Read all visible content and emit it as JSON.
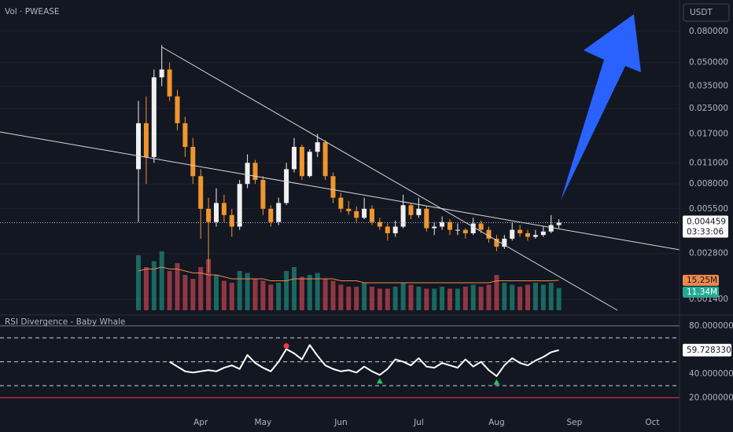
{
  "chart_data": [
    {
      "type": "candlestick",
      "title": "Vol · PWEASE",
      "currency": "USDT",
      "countdown": "03:33:06",
      "yscale": "log",
      "grid": true,
      "up_color": "#f0f0f0",
      "down_color": "#f0952e",
      "ylim": [
        0.00112,
        0.1285
      ],
      "yticks": [
        {
          "value": 0.08,
          "label": "0.080000"
        },
        {
          "value": 0.05,
          "label": "0.050000"
        },
        {
          "value": 0.035,
          "label": "0.035000"
        },
        {
          "value": 0.025,
          "label": "0.025000"
        },
        {
          "value": 0.017,
          "label": "0.017000"
        },
        {
          "value": 0.011,
          "label": "0.011000"
        },
        {
          "value": 0.008,
          "label": "0.008000"
        },
        {
          "value": 0.0055,
          "label": "0.005500"
        },
        {
          "value": 0.0028,
          "label": "0.002800"
        },
        {
          "value": 0.0014,
          "label": "0.001400"
        }
      ],
      "categories": [
        null,
        null,
        null,
        null,
        null,
        null,
        null,
        null,
        "Apr",
        null,
        null,
        null,
        null,
        null,
        null,
        null,
        "May",
        null,
        null,
        null,
        null,
        null,
        null,
        null,
        null,
        null,
        "Jun",
        null,
        null,
        null,
        null,
        null,
        null,
        null,
        null,
        null,
        "Jul",
        null,
        null,
        null,
        null,
        null,
        null,
        null,
        null,
        null,
        "Aug",
        null,
        null,
        null,
        null,
        null,
        null,
        null,
        null,
        null,
        "Sep",
        null,
        null,
        null,
        null,
        null,
        null,
        null,
        null,
        null,
        "Oct"
      ],
      "open": [
        0.01,
        0.02,
        0.012,
        0.04,
        0.045,
        0.03,
        0.02,
        0.014,
        0.009,
        0.0055,
        0.0045,
        0.006,
        0.005,
        0.0042,
        0.008,
        0.011,
        0.0085,
        0.0055,
        0.0045,
        0.006,
        0.01,
        0.014,
        0.009,
        0.013,
        0.015,
        0.009,
        0.0065,
        0.0055,
        0.0053,
        0.0048,
        0.0055,
        0.0045,
        0.0042,
        0.0038,
        0.0042,
        0.0058,
        0.005,
        0.0055,
        0.0041,
        0.0042,
        0.0045,
        0.004,
        0.004,
        0.0038,
        0.0044,
        0.004,
        0.0035,
        0.0031,
        0.0035,
        0.004,
        0.0038,
        0.0036,
        0.0037,
        0.0039,
        0.0043,
        null,
        null,
        null,
        null,
        null,
        null,
        null,
        null,
        null,
        null,
        null,
        null
      ],
      "high": [
        0.028,
        0.03,
        0.045,
        0.065,
        0.05,
        0.033,
        0.022,
        0.016,
        0.01,
        0.0065,
        0.0075,
        0.0068,
        0.0055,
        0.0085,
        0.0125,
        0.0115,
        0.009,
        0.0058,
        0.0065,
        0.011,
        0.016,
        0.0145,
        0.0135,
        0.017,
        0.0155,
        0.0095,
        0.007,
        0.0062,
        0.0057,
        0.0065,
        0.0058,
        0.0048,
        0.0044,
        0.0046,
        0.0068,
        0.006,
        0.0065,
        0.0057,
        0.0045,
        0.0049,
        0.0047,
        0.0044,
        0.0041,
        0.0048,
        0.0046,
        0.0042,
        0.0037,
        0.0037,
        0.0045,
        0.0043,
        0.004,
        0.004,
        0.0042,
        0.005,
        0.0047,
        null,
        null,
        null,
        null,
        null,
        null,
        null,
        null,
        null,
        null,
        null,
        null
      ],
      "low": [
        0.0045,
        0.008,
        0.011,
        0.035,
        0.028,
        0.018,
        0.012,
        0.008,
        0.0035,
        0.0021,
        0.0042,
        0.0045,
        0.0036,
        0.004,
        0.0075,
        0.008,
        0.005,
        0.0042,
        0.0043,
        0.0058,
        0.0095,
        0.0085,
        0.0088,
        0.012,
        0.0085,
        0.006,
        0.0052,
        0.005,
        0.0045,
        0.0047,
        0.0043,
        0.004,
        0.0034,
        0.0036,
        0.0041,
        0.0047,
        0.0048,
        0.0039,
        0.0037,
        0.004,
        0.0037,
        0.0037,
        0.0035,
        0.0037,
        0.0038,
        0.0033,
        0.0029,
        0.003,
        0.0034,
        0.0036,
        0.0034,
        0.0035,
        0.0036,
        0.0038,
        0.0041,
        null,
        null,
        null,
        null,
        null,
        null,
        null,
        null,
        null,
        null,
        null,
        null
      ],
      "close": [
        0.02,
        0.012,
        0.04,
        0.045,
        0.03,
        0.02,
        0.014,
        0.009,
        0.0055,
        0.0045,
        0.006,
        0.005,
        0.0042,
        0.008,
        0.011,
        0.0085,
        0.0055,
        0.0045,
        0.006,
        0.01,
        0.014,
        0.009,
        0.013,
        0.015,
        0.009,
        0.0065,
        0.0055,
        0.0053,
        0.0048,
        0.0055,
        0.0045,
        0.0042,
        0.0038,
        0.0042,
        0.0058,
        0.005,
        0.0055,
        0.0041,
        0.0042,
        0.0045,
        0.004,
        0.004,
        0.0038,
        0.0044,
        0.004,
        0.0035,
        0.0031,
        0.0035,
        0.004,
        0.0038,
        0.0036,
        0.0037,
        0.0039,
        0.0043,
        0.004459,
        null,
        null,
        null,
        null,
        null,
        null,
        null,
        null,
        null,
        null,
        null,
        null
      ],
      "volume": {
        "up_color": "#22ab94",
        "down_color": "#f7525f",
        "ylim": [
          0,
          30
        ],
        "last_label": "11.34M",
        "values": [
          28,
          22,
          25,
          30,
          20,
          24,
          18,
          16,
          22,
          26,
          18,
          15,
          14,
          20,
          19,
          16,
          15,
          13,
          14,
          20,
          22,
          17,
          18,
          19,
          16,
          15,
          13,
          12,
          12,
          14,
          12,
          11,
          11,
          12,
          14,
          13,
          12,
          11,
          11,
          12,
          11,
          11,
          12,
          13,
          12,
          13,
          18,
          14,
          13,
          12,
          13,
          14,
          13,
          14,
          11.34,
          null,
          null,
          null,
          null,
          null,
          null,
          null,
          null,
          null,
          null,
          null,
          null
        ]
      },
      "volume_ma": {
        "color": "#f0884a",
        "last_label": "15.25M",
        "values": [
          20,
          21,
          21,
          22,
          21,
          21,
          20,
          19,
          19,
          18,
          18,
          17,
          16,
          16,
          16,
          16,
          16,
          15,
          15,
          15,
          16,
          16,
          16,
          16,
          16,
          16,
          15,
          15,
          15,
          14,
          14,
          14,
          14,
          14,
          14,
          14,
          14,
          14,
          14,
          14,
          14,
          14,
          14,
          14,
          14,
          14,
          15,
          15,
          15,
          15,
          15,
          15,
          15,
          15,
          15.25,
          null,
          null,
          null,
          null,
          null,
          null,
          null,
          null,
          null,
          null,
          null,
          null
        ]
      }
    },
    {
      "type": "line",
      "title": "RSI Divergence - Baby Whale",
      "color": "#ffffff",
      "last_label": "59.728330",
      "ylim": [
        11,
        86.5
      ],
      "yticks": [
        {
          "value": 80,
          "label": "80.000000"
        },
        {
          "value": 40,
          "label": "40.000000"
        },
        {
          "value": 20,
          "label": "20.000000"
        }
      ],
      "levels": [
        {
          "value": 80,
          "color": "#787b86",
          "dashed": false
        },
        {
          "value": 70,
          "color": "#d1d4dc",
          "dashed": true
        },
        {
          "value": 50,
          "color": "#d1d4dc",
          "dashed": true
        },
        {
          "value": 30,
          "color": "#d1d4dc",
          "dashed": true
        },
        {
          "value": 20,
          "color": "#f23645",
          "dashed": false
        }
      ],
      "values": [
        null,
        null,
        null,
        null,
        50,
        46,
        42,
        41,
        42,
        43,
        42,
        45,
        47,
        44,
        55.7,
        49,
        45,
        42,
        50,
        60.6,
        57,
        52,
        64,
        55,
        47,
        44,
        42,
        43,
        41,
        46,
        42,
        39,
        44,
        52,
        50,
        47,
        53,
        46,
        45,
        49,
        47,
        45,
        52,
        46,
        50,
        43,
        38,
        47,
        53,
        49,
        47,
        51,
        54,
        58,
        59.72833,
        null,
        null,
        null,
        null,
        null,
        null,
        null,
        null,
        null,
        null,
        null,
        null
      ],
      "bearish": {
        "color": "#f23645",
        "values": [
          null,
          null,
          null,
          null,
          null,
          null,
          null,
          null,
          null,
          null,
          null,
          null,
          null,
          null,
          null,
          null,
          null,
          null,
          null,
          60.6,
          null,
          null,
          null,
          null,
          null,
          null,
          null,
          null,
          null,
          null,
          null,
          null,
          null,
          null,
          null,
          null,
          null,
          null,
          null,
          null,
          null,
          null,
          null,
          null,
          null,
          null,
          null,
          null,
          null,
          null,
          null,
          null,
          null,
          null,
          null,
          null,
          null,
          null,
          null,
          null,
          null,
          null,
          null,
          null,
          null,
          null,
          null
        ]
      },
      "bullish": {
        "color": "#22c55e",
        "values": [
          null,
          null,
          null,
          null,
          null,
          null,
          null,
          null,
          null,
          null,
          null,
          null,
          null,
          null,
          null,
          null,
          null,
          null,
          null,
          null,
          null,
          null,
          null,
          null,
          null,
          null,
          null,
          null,
          null,
          null,
          null,
          39,
          null,
          null,
          null,
          null,
          null,
          null,
          null,
          null,
          null,
          null,
          null,
          null,
          null,
          null,
          38,
          null,
          null,
          null,
          null,
          null,
          null,
          null,
          null,
          null,
          null,
          null,
          null,
          null,
          null,
          null,
          null,
          null,
          null,
          null,
          null
        ]
      }
    }
  ]
}
